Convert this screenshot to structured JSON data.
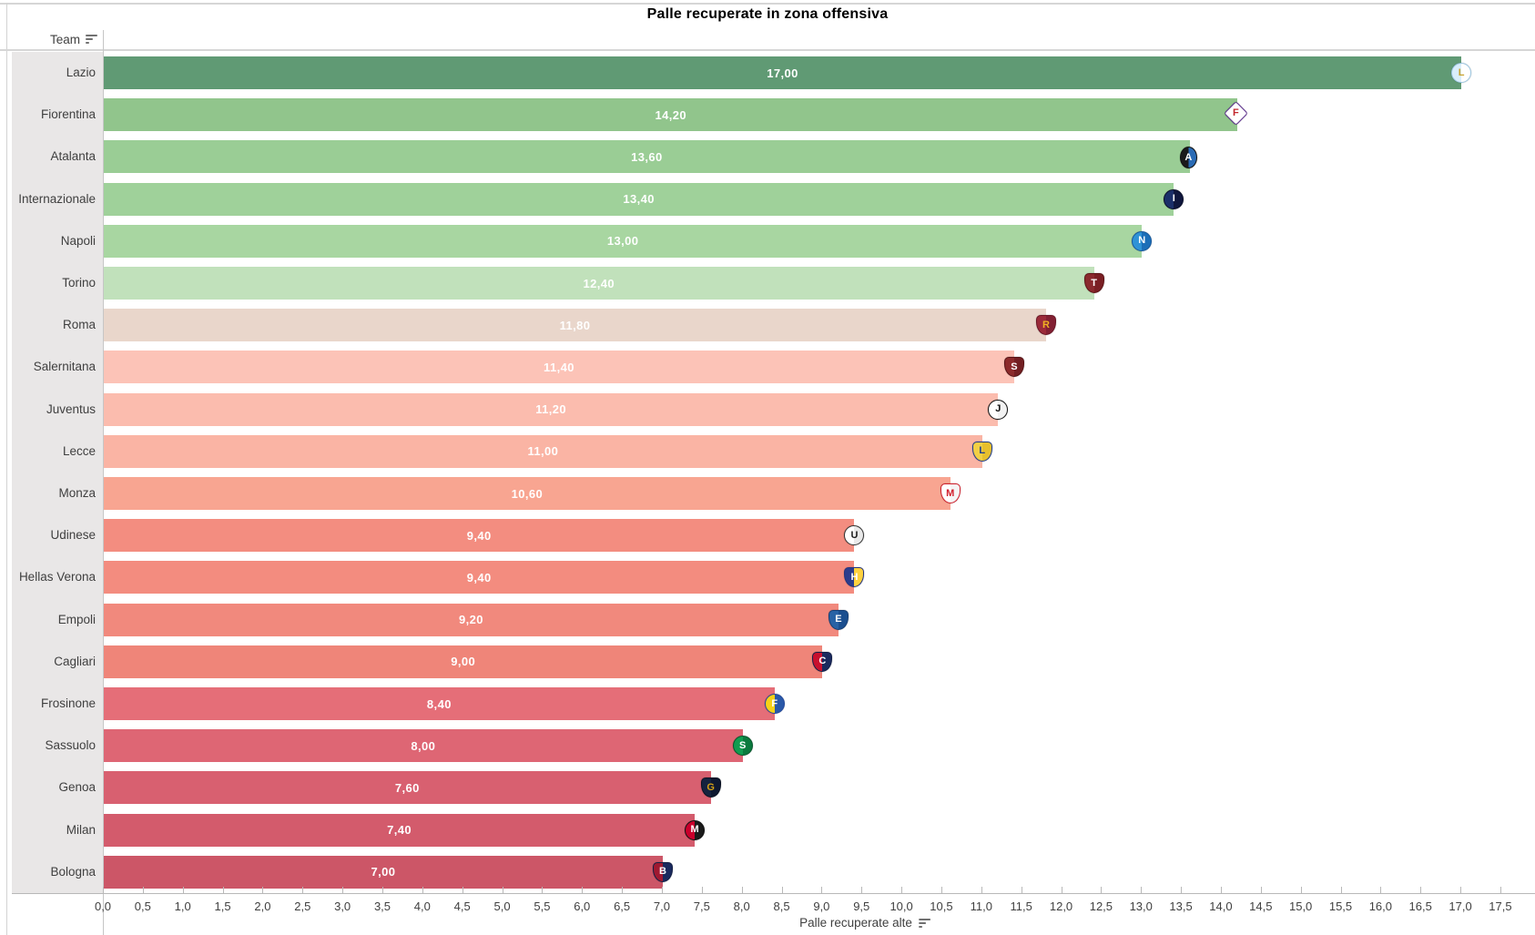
{
  "title": "Palle recuperate in zona offensiva",
  "table": {
    "team_header": "Team"
  },
  "x_axis": {
    "title": "Palle recuperate alte",
    "min": 0,
    "max": 17.5,
    "step": 0.5,
    "tick_labels": [
      "0,0",
      "0,5",
      "1,0",
      "1,5",
      "2,0",
      "2,5",
      "3,0",
      "3,5",
      "4,0",
      "4,5",
      "5,0",
      "5,5",
      "6,0",
      "6,5",
      "7,0",
      "7,5",
      "8,0",
      "8,5",
      "9,0",
      "9,5",
      "10,0",
      "10,5",
      "11,0",
      "11,5",
      "12,0",
      "12,5",
      "13,0",
      "13,5",
      "14,0",
      "14,5",
      "15,0",
      "15,5",
      "16,0",
      "16,5",
      "17,0",
      "17,5"
    ]
  },
  "chart_data": {
    "type": "bar",
    "orientation": "horizontal",
    "title": "Palle recuperate in zona offensiva",
    "xlabel": "Palle recuperate alte",
    "ylabel": "Team",
    "xlim": [
      0,
      17.5
    ],
    "grid": false,
    "value_format": "two-decimal comma",
    "categories": [
      "Lazio",
      "Fiorentina",
      "Atalanta",
      "Internazionale",
      "Napoli",
      "Torino",
      "Roma",
      "Salernitana",
      "Juventus",
      "Lecce",
      "Monza",
      "Udinese",
      "Hellas Verona",
      "Empoli",
      "Cagliari",
      "Frosinone",
      "Sassuolo",
      "Genoa",
      "Milan",
      "Bologna"
    ],
    "values": [
      17.0,
      14.2,
      13.6,
      13.4,
      13.0,
      12.4,
      11.8,
      11.4,
      11.2,
      11.0,
      10.6,
      9.4,
      9.4,
      9.2,
      9.0,
      8.4,
      8.0,
      7.6,
      7.4,
      7.0
    ],
    "teams": [
      {
        "name": "Lazio",
        "value": 17.0,
        "value_label": "17,00",
        "color": "#609a74",
        "logo": {
          "icon": "lazio-crest",
          "shape": "circle",
          "c1": "#d9eefb",
          "c2": "#ffffff",
          "border": "#9cc7e2",
          "initial": "L",
          "initial_color": "#c9a22e"
        }
      },
      {
        "name": "Fiorentina",
        "value": 14.2,
        "value_label": "14,20",
        "color": "#91c58c",
        "logo": {
          "icon": "fiorentina-crest",
          "shape": "diamond",
          "c1": "#ffffff",
          "c2": "#ffffff",
          "border": "#5c2e8e",
          "initial": "F",
          "initial_color": "#c2272d"
        }
      },
      {
        "name": "Atalanta",
        "value": 13.6,
        "value_label": "13,60",
        "color": "#9acd95",
        "logo": {
          "icon": "atalanta-crest",
          "shape": "oval",
          "c1": "#1a1a1a",
          "c2": "#2a6bb5",
          "border": "#101010",
          "initial": "A",
          "initial_color": "#ffffff"
        }
      },
      {
        "name": "Internazionale",
        "value": 13.4,
        "value_label": "13,40",
        "color": "#9fd19a",
        "logo": {
          "icon": "inter-crest",
          "shape": "circle",
          "c1": "#1b2f69",
          "c2": "#10173d",
          "border": "#0a0f2a",
          "initial": "I",
          "initial_color": "#ffffff"
        }
      },
      {
        "name": "Napoli",
        "value": 13.0,
        "value_label": "13,00",
        "color": "#a8d6a1",
        "logo": {
          "icon": "napoli-crest",
          "shape": "circle",
          "c1": "#2f93d6",
          "c2": "#1c6fb8",
          "border": "#15589c",
          "initial": "N",
          "initial_color": "#ffffff"
        }
      },
      {
        "name": "Torino",
        "value": 12.4,
        "value_label": "12,40",
        "color": "#c1e1bb",
        "logo": {
          "icon": "torino-crest",
          "shape": "shield",
          "c1": "#8a2a2e",
          "c2": "#7a1f24",
          "border": "#5e1518",
          "initial": "T",
          "initial_color": "#ffffff"
        }
      },
      {
        "name": "Roma",
        "value": 11.8,
        "value_label": "11,80",
        "color": "#e9d6cb",
        "logo": {
          "icon": "roma-crest",
          "shape": "shield",
          "c1": "#9b2b3a",
          "c2": "#822033",
          "border": "#6b1626",
          "initial": "R",
          "initial_color": "#f0b323"
        }
      },
      {
        "name": "Salernitana",
        "value": 11.4,
        "value_label": "11,40",
        "color": "#fcc3b7",
        "logo": {
          "icon": "salernitana-crest",
          "shape": "shield",
          "c1": "#8c2a2b",
          "c2": "#731f22",
          "border": "#581416",
          "initial": "S",
          "initial_color": "#ffffff"
        }
      },
      {
        "name": "Juventus",
        "value": 11.2,
        "value_label": "11,20",
        "color": "#fbbcae",
        "logo": {
          "icon": "juventus-crest",
          "shape": "circle",
          "c1": "#ffffff",
          "c2": "#f2f2f2",
          "border": "#111111",
          "initial": "J",
          "initial_color": "#111111"
        }
      },
      {
        "name": "Lecce",
        "value": 11.0,
        "value_label": "11,00",
        "color": "#fab4a4",
        "logo": {
          "icon": "lecce-crest",
          "shape": "shield",
          "c1": "#f2cf45",
          "c2": "#e7bf2e",
          "border": "#1d3c8f",
          "initial": "L",
          "initial_color": "#1d3c8f"
        }
      },
      {
        "name": "Monza",
        "value": 10.6,
        "value_label": "10,60",
        "color": "#f8a591",
        "logo": {
          "icon": "monza-crest",
          "shape": "shield",
          "c1": "#ffffff",
          "c2": "#f5f5f5",
          "border": "#d21e2b",
          "initial": "M",
          "initial_color": "#d21e2b"
        }
      },
      {
        "name": "Udinese",
        "value": 9.4,
        "value_label": "9,40",
        "color": "#f38d80",
        "logo": {
          "icon": "udinese-crest",
          "shape": "circle",
          "c1": "#ffffff",
          "c2": "#e9e9e9",
          "border": "#333333",
          "initial": "U",
          "initial_color": "#1a1a1a"
        }
      },
      {
        "name": "Hellas Verona",
        "value": 9.4,
        "value_label": "9,40",
        "color": "#f38c7f",
        "logo": {
          "icon": "hellas-verona-crest",
          "shape": "shield",
          "c1": "#2b3c8c",
          "c2": "#ffd23f",
          "border": "#24347d",
          "initial": "H",
          "initial_color": "#ffffff"
        }
      },
      {
        "name": "Empoli",
        "value": 9.2,
        "value_label": "9,20",
        "color": "#f1897d",
        "logo": {
          "icon": "empoli-crest",
          "shape": "shield",
          "c1": "#2862a5",
          "c2": "#1b4f8f",
          "border": "#163f75",
          "initial": "E",
          "initial_color": "#ffffff"
        }
      },
      {
        "name": "Cagliari",
        "value": 9.0,
        "value_label": "9,00",
        "color": "#ef8579",
        "logo": {
          "icon": "cagliari-crest",
          "shape": "shield",
          "c1": "#c8102e",
          "c2": "#1b2a5e",
          "border": "#14204a",
          "initial": "C",
          "initial_color": "#ffffff"
        }
      },
      {
        "name": "Frosinone",
        "value": 8.4,
        "value_label": "8,40",
        "color": "#e56e78",
        "logo": {
          "icon": "frosinone-crest",
          "shape": "circle",
          "c1": "#f7d117",
          "c2": "#2a59a8",
          "border": "#23489c",
          "initial": "F",
          "initial_color": "#ffffff"
        }
      },
      {
        "name": "Sassuolo",
        "value": 8.0,
        "value_label": "8,00",
        "color": "#de6674",
        "logo": {
          "icon": "sassuolo-crest",
          "shape": "circle",
          "c1": "#119c50",
          "c2": "#0b7a3e",
          "border": "#07572c",
          "initial": "S",
          "initial_color": "#ffffff"
        }
      },
      {
        "name": "Genoa",
        "value": 7.6,
        "value_label": "7,60",
        "color": "#d86070",
        "logo": {
          "icon": "genoa-crest",
          "shape": "shield",
          "c1": "#16233f",
          "c2": "#0e1830",
          "border": "#0a1122",
          "initial": "G",
          "initial_color": "#d4a017"
        }
      },
      {
        "name": "Milan",
        "value": 7.4,
        "value_label": "7,40",
        "color": "#d35b6c",
        "logo": {
          "icon": "milan-crest",
          "shape": "circle",
          "c1": "#c9002b",
          "c2": "#1a1a1a",
          "border": "#111111",
          "initial": "M",
          "initial_color": "#ffffff"
        }
      },
      {
        "name": "Bologna",
        "value": 7.0,
        "value_label": "7,00",
        "color": "#cc5667",
        "logo": {
          "icon": "bologna-crest",
          "shape": "shield",
          "c1": "#a01931",
          "c2": "#1b2a5e",
          "border": "#131f45",
          "initial": "B",
          "initial_color": "#ffffff"
        }
      }
    ]
  }
}
